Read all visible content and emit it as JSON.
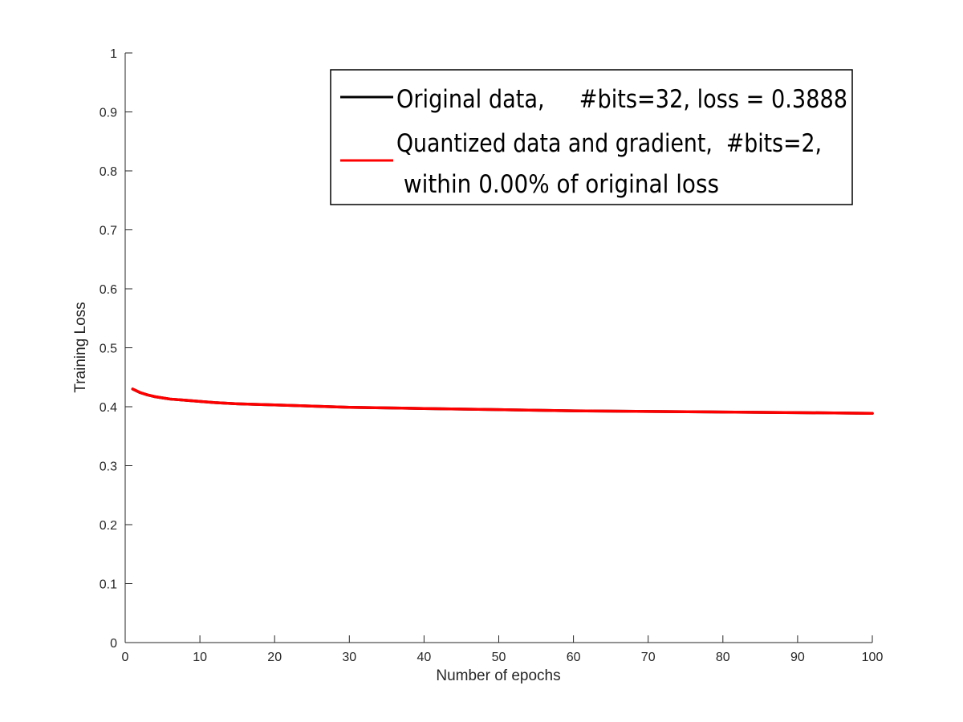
{
  "chart_data": {
    "type": "line",
    "title": "",
    "xlabel": "Number of epochs",
    "ylabel": "Training Loss",
    "xlim": [
      0,
      100
    ],
    "ylim": [
      0,
      1
    ],
    "xticks": [
      0,
      10,
      20,
      30,
      40,
      50,
      60,
      70,
      80,
      90,
      100
    ],
    "xtick_labels": [
      "0",
      "10",
      "20",
      "30",
      "40",
      "50",
      "60",
      "70",
      "80",
      "90",
      "100"
    ],
    "yticks": [
      0,
      0.1,
      0.2,
      0.3,
      0.4,
      0.5,
      0.6,
      0.7,
      0.8,
      0.9,
      1
    ],
    "ytick_labels": [
      "0",
      "0.1",
      "0.2",
      "0.3",
      "0.4",
      "0.5",
      "0.6",
      "0.7",
      "0.8",
      "0.9",
      "1"
    ],
    "grid": false,
    "legend_position": "top-right",
    "series": [
      {
        "legend_lines": [
          "Original data,     #bits=32, loss = 0.3888"
        ],
        "color": "#000000",
        "x": [
          1,
          2,
          3,
          4,
          5,
          6,
          8,
          10,
          12,
          15,
          20,
          25,
          30,
          40,
          50,
          60,
          70,
          80,
          90,
          100
        ],
        "y": [
          0.43,
          0.424,
          0.42,
          0.417,
          0.415,
          0.413,
          0.411,
          0.409,
          0.407,
          0.405,
          0.403,
          0.401,
          0.399,
          0.397,
          0.395,
          0.393,
          0.392,
          0.391,
          0.39,
          0.3888
        ]
      },
      {
        "legend_lines": [
          "Quantized data and gradient,  #bits=2,",
          " within 0.00% of original loss"
        ],
        "color": "#ff0000",
        "x": [
          1,
          2,
          3,
          4,
          5,
          6,
          8,
          10,
          12,
          15,
          20,
          25,
          30,
          40,
          50,
          60,
          70,
          80,
          90,
          100
        ],
        "y": [
          0.43,
          0.424,
          0.42,
          0.417,
          0.415,
          0.413,
          0.411,
          0.409,
          0.407,
          0.405,
          0.403,
          0.401,
          0.399,
          0.397,
          0.395,
          0.393,
          0.392,
          0.391,
          0.39,
          0.3888
        ]
      }
    ]
  }
}
